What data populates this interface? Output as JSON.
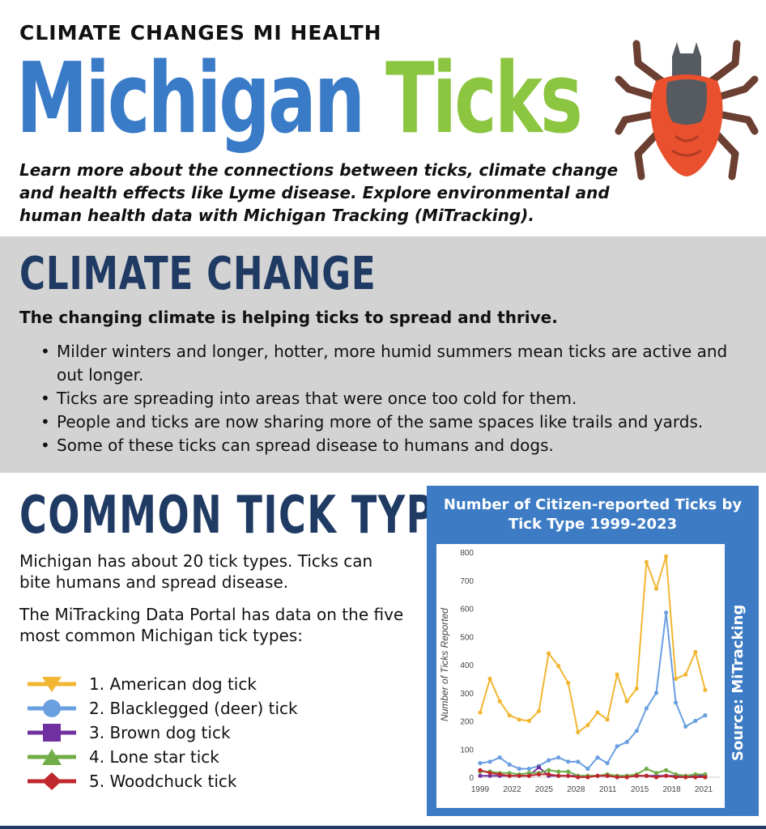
{
  "header": {
    "kicker": "CLIMATE CHANGES MI HEALTH",
    "title_part1": "Michigan",
    "title_part2": "Ticks",
    "intro": "Learn more about the connections between ticks, climate change and health effects like Lyme disease. Explore environmental and human health data with Michigan Tracking (MiTracking).",
    "icon": "tick-icon"
  },
  "climate": {
    "title": "CLIMATE CHANGE",
    "lead": "The changing climate is helping ticks to spread and thrive.",
    "bullets": [
      "Milder winters and longer, hotter, more humid summers mean ticks are active and out longer.",
      "Ticks are spreading into areas that were once too cold for them.",
      "People and ticks are now sharing more of the same spaces like trails and yards.",
      "Some of these ticks can spread disease to humans and dogs."
    ]
  },
  "types": {
    "title": "COMMON TICK TYPES",
    "p1": "Michigan has about 20 tick types. Ticks can bite humans and spread disease.",
    "p2": "The MiTracking Data Portal has data on the five most common Michigan tick types:",
    "legend": [
      {
        "label": "1. American dog tick",
        "color": "#f2b632",
        "marker": "triangle-down"
      },
      {
        "label": "2. Blacklegged (deer) tick",
        "color": "#6a9fe0",
        "marker": "circle"
      },
      {
        "label": "3. Brown dog tick",
        "color": "#7030a0",
        "marker": "square"
      },
      {
        "label": "4. Lone star tick",
        "color": "#70ad47",
        "marker": "triangle-up"
      },
      {
        "label": "5. Woodchuck tick",
        "color": "#c0272d",
        "marker": "diamond"
      }
    ]
  },
  "chart_data": {
    "type": "line",
    "title": "Number of Citizen-reported Ticks by Tick Type 1999-2023",
    "ylabel": "Number of Ticks Reported",
    "source": "Source: MiTracking",
    "ylim": [
      0,
      800
    ],
    "yticks": [
      0,
      100,
      200,
      300,
      400,
      500,
      600,
      700,
      800
    ],
    "xtick_labels": [
      "1999",
      "2022",
      "2025",
      "2028",
      "2011",
      "2015",
      "2018",
      "2021"
    ],
    "x": [
      1,
      2,
      3,
      4,
      5,
      6,
      7,
      8,
      9,
      10,
      11,
      12,
      13,
      14,
      15,
      16,
      17,
      18,
      19,
      20,
      21,
      22,
      23,
      24,
      25,
      26,
      27,
      28,
      29,
      30,
      31,
      32,
      33,
      34,
      35,
      36,
      37,
      38,
      39,
      40,
      41,
      42,
      43,
      44,
      45,
      46,
      47,
      48,
      49,
      50
    ],
    "series": [
      {
        "color": "#f2b632",
        "values": [
          230,
          null,
          350,
          null,
          270,
          null,
          220,
          null,
          205,
          null,
          200,
          null,
          235,
          null,
          440,
          null,
          395,
          null,
          335,
          null,
          160,
          null,
          185,
          null,
          230,
          null,
          205,
          null,
          365,
          null,
          270,
          null,
          315,
          null,
          765,
          null,
          670,
          null,
          785,
          null,
          350,
          null,
          365,
          null,
          445,
          null,
          310,
          null,
          null,
          null
        ]
      },
      {
        "color": "#6a9fe0",
        "values": [
          50,
          null,
          55,
          null,
          70,
          null,
          45,
          null,
          30,
          null,
          30,
          null,
          40,
          null,
          60,
          null,
          70,
          null,
          55,
          null,
          55,
          null,
          30,
          null,
          70,
          null,
          50,
          null,
          110,
          null,
          125,
          null,
          165,
          null,
          245,
          null,
          300,
          null,
          585,
          null,
          265,
          null,
          180,
          null,
          200,
          null,
          220,
          null,
          null,
          null
        ]
      },
      {
        "color": "#7030a0",
        "values": [
          5,
          null,
          5,
          null,
          5,
          null,
          5,
          null,
          5,
          null,
          5,
          null,
          35,
          null,
          5,
          null,
          5,
          null,
          5,
          null,
          5,
          null,
          5,
          null,
          5,
          null,
          5,
          null,
          5,
          null,
          5,
          null,
          5,
          null,
          5,
          null,
          5,
          null,
          5,
          null,
          5,
          null,
          5,
          null,
          5,
          null,
          5,
          null,
          null,
          null
        ]
      },
      {
        "color": "#70ad47",
        "values": [
          20,
          null,
          20,
          null,
          15,
          null,
          15,
          null,
          10,
          null,
          15,
          null,
          15,
          null,
          25,
          null,
          20,
          null,
          20,
          null,
          5,
          null,
          5,
          null,
          5,
          null,
          10,
          null,
          5,
          null,
          5,
          null,
          10,
          null,
          30,
          null,
          15,
          null,
          25,
          null,
          10,
          null,
          5,
          null,
          10,
          null,
          10,
          null,
          null,
          null
        ]
      },
      {
        "color": "#c0272d",
        "values": [
          25,
          null,
          15,
          null,
          10,
          null,
          5,
          null,
          5,
          null,
          5,
          null,
          10,
          null,
          10,
          null,
          5,
          null,
          5,
          null,
          0,
          null,
          0,
          null,
          5,
          null,
          5,
          null,
          0,
          null,
          0,
          null,
          5,
          null,
          5,
          null,
          0,
          null,
          5,
          null,
          0,
          null,
          0,
          null,
          0,
          null,
          0,
          null,
          null,
          null
        ]
      }
    ]
  }
}
